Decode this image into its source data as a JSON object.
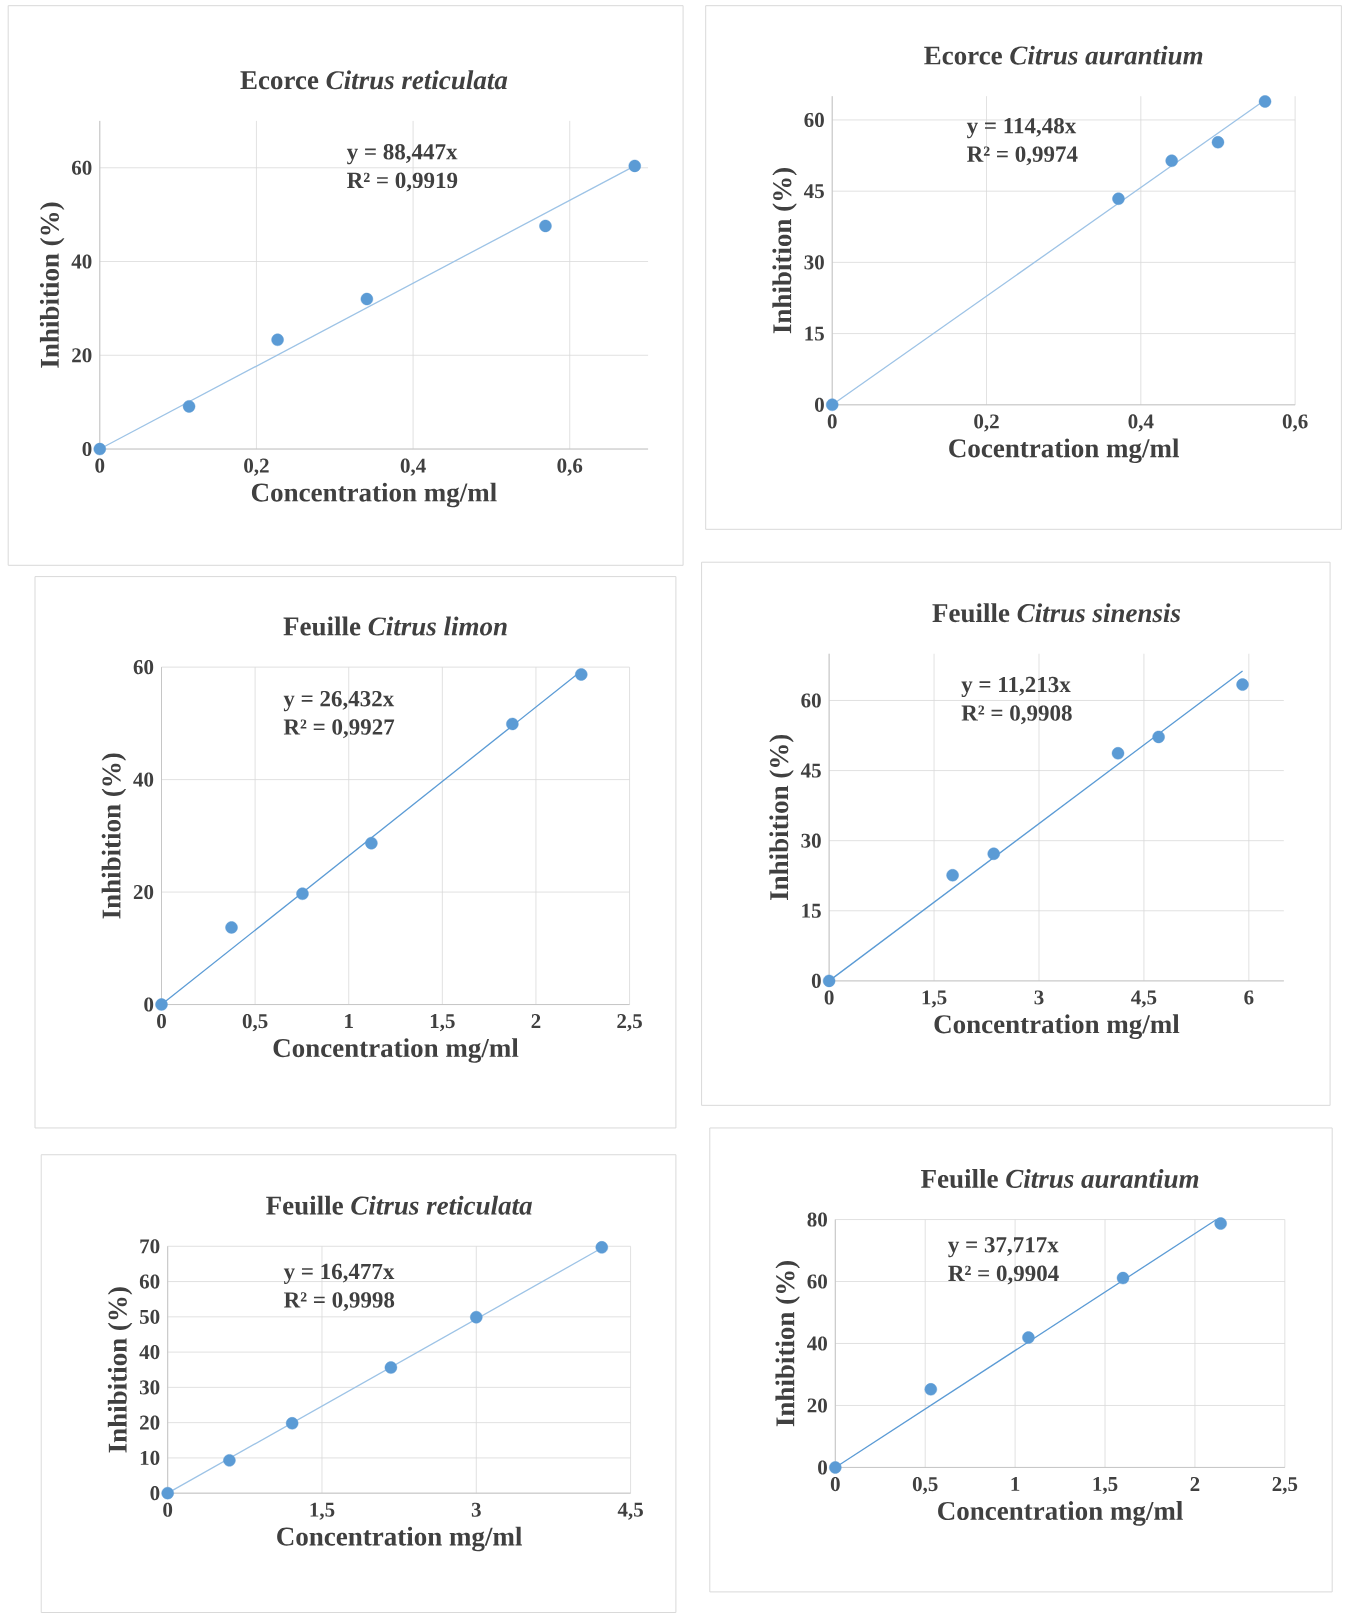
{
  "chart_data": [
    {
      "type": "scatter",
      "title": "Ecorce *Citrus reticulata*",
      "xlabel": "Concentration  mg/ml",
      "ylabel": "Inhibition (%)",
      "xlim": [
        0,
        0.7
      ],
      "ylim": [
        0,
        70
      ],
      "xticks": [
        0,
        {
          "value": 0.2,
          "label": "0,2"
        },
        {
          "value": 0.4,
          "label": "0,4"
        },
        {
          "value": 0.6,
          "label": "0,6"
        }
      ],
      "yticks": [
        0,
        20,
        40,
        60
      ],
      "grid": true,
      "annotations": [
        "y = 88,447x",
        "R² = 0,9919"
      ],
      "series": [
        {
          "type": "scatter",
          "marker": "circle",
          "color": "#5b9bd5",
          "x": [
            0,
            0.114,
            0.227,
            0.341,
            0.569,
            0.683
          ],
          "values": [
            0,
            9.1,
            23.3,
            32,
            47.6,
            60.4
          ]
        },
        {
          "type": "line",
          "marker": "none",
          "color": "#9dc3e6",
          "x": [
            0,
            0.683
          ],
          "values": [
            0,
            60.4
          ]
        }
      ]
    },
    {
      "type": "scatter",
      "title": "Ecorce *Citrus aurantium*",
      "xlabel": "Cocentration  mg/ml",
      "ylabel": "Inhibition (%)",
      "xlim": [
        0,
        0.6
      ],
      "ylim": [
        0,
        65
      ],
      "xticks": [
        0,
        {
          "value": 0.2,
          "label": "0,2"
        },
        {
          "value": 0.4,
          "label": "0,4"
        },
        {
          "value": 0.6,
          "label": "0,6"
        }
      ],
      "yticks": [
        0,
        15,
        30,
        45,
        60
      ],
      "grid": true,
      "annotations": [
        "y = 114,48x",
        "R² = 0,9974"
      ],
      "series": [
        {
          "type": "scatter",
          "marker": "circle",
          "color": "#5b9bd5",
          "x": [
            0,
            0.371,
            0.44,
            0.5,
            0.561
          ],
          "values": [
            0,
            43.4,
            51.4,
            55.3,
            63.9
          ]
        },
        {
          "type": "line",
          "marker": "none",
          "color": "#9dc3e6",
          "x": [
            0,
            0.561
          ],
          "values": [
            0,
            64.2
          ]
        }
      ]
    },
    {
      "type": "scatter",
      "title": "Feuille *Citrus limon*",
      "xlabel": "Concentration mg/ml",
      "ylabel": "Inhibition (%)",
      "xlim": [
        0,
        2.5
      ],
      "ylim": [
        0,
        60
      ],
      "xticks": [
        0,
        {
          "value": 0.5,
          "label": "0,5"
        },
        1,
        {
          "value": 1.5,
          "label": "1,5"
        },
        2,
        {
          "value": 2.5,
          "label": "2,5"
        }
      ],
      "yticks": [
        0,
        20,
        40,
        60
      ],
      "grid": true,
      "annotations": [
        "y = 26,432x",
        "R² = 0,9927"
      ],
      "series": [
        {
          "type": "scatter",
          "marker": "circle",
          "color": "#5b9bd5",
          "x": [
            0,
            0.374,
            0.753,
            1.121,
            1.874,
            2.242
          ],
          "values": [
            0,
            13.7,
            19.7,
            28.7,
            49.9,
            58.7
          ]
        },
        {
          "type": "line",
          "marker": "none",
          "color": "#5b9bd5",
          "x": [
            0,
            2.242
          ],
          "values": [
            0,
            59.3
          ]
        }
      ]
    },
    {
      "type": "scatter",
      "title": "Feuille  *Citrus sinensis*",
      "xlabel": "Concentration mg/ml",
      "ylabel": "Inhibition (%)",
      "xlim": [
        0,
        6.5
      ],
      "ylim": [
        0,
        70
      ],
      "xticks": [
        0,
        {
          "value": 1.5,
          "label": "1,5"
        },
        3,
        {
          "value": 4.5,
          "label": "4,5"
        },
        6
      ],
      "yticks": [
        0,
        15,
        30,
        45,
        60
      ],
      "grid": true,
      "annotations": [
        "y = 11,213x",
        "R² = 0,9908"
      ],
      "series": [
        {
          "type": "scatter",
          "marker": "circle",
          "color": "#5b9bd5",
          "x": [
            0,
            1.765,
            2.353,
            4.13,
            4.71,
            5.91
          ],
          "values": [
            0,
            22.6,
            27.2,
            48.7,
            52.2,
            63.4
          ]
        },
        {
          "type": "line",
          "marker": "none",
          "color": "#5b9bd5",
          "x": [
            0,
            5.91
          ],
          "values": [
            0,
            66.3
          ]
        }
      ]
    },
    {
      "type": "scatter",
      "title": "Feuille *Citrus reticulata*",
      "xlabel": "Concentration  mg/ml",
      "ylabel": "Inhibition (%)",
      "xlim": [
        0,
        4.5
      ],
      "ylim": [
        0,
        70
      ],
      "xticks": [
        0,
        {
          "value": 1.5,
          "label": "1,5"
        },
        3,
        {
          "value": 4.5,
          "label": "4,5"
        }
      ],
      "yticks": [
        0,
        10,
        20,
        30,
        40,
        50,
        60,
        70
      ],
      "grid": true,
      "annotations": [
        "y = 16,477x",
        "R² = 0,9998"
      ],
      "series": [
        {
          "type": "scatter",
          "marker": "circle",
          "color": "#5b9bd5",
          "x": [
            0,
            0.6,
            1.21,
            2.17,
            3.0,
            4.22
          ],
          "values": [
            0,
            9.3,
            19.8,
            35.6,
            49.9,
            69.7
          ]
        },
        {
          "type": "line",
          "marker": "none",
          "color": "#9dc3e6",
          "x": [
            0,
            4.22
          ],
          "values": [
            0,
            69.5
          ]
        }
      ]
    },
    {
      "type": "scatter",
      "title": "Feuille *Citrus aurantium*",
      "xlabel": "Concentration mg/ml",
      "ylabel": "Inhibition (%)",
      "xlim": [
        0,
        2.5
      ],
      "ylim": [
        0,
        80
      ],
      "xticks": [
        0,
        {
          "value": 0.5,
          "label": "0,5"
        },
        1,
        {
          "value": 1.5,
          "label": "1,5"
        },
        2,
        {
          "value": 2.5,
          "label": "2,5"
        }
      ],
      "yticks": [
        0,
        20,
        40,
        60,
        80
      ],
      "grid": true,
      "annotations": [
        "y = 37,717x",
        "R² = 0,9904"
      ],
      "series": [
        {
          "type": "scatter",
          "marker": "circle",
          "color": "#5b9bd5",
          "x": [
            0,
            0.531,
            1.074,
            1.6,
            2.143
          ],
          "values": [
            0,
            25.2,
            41.9,
            61.1,
            78.7
          ]
        },
        {
          "type": "line",
          "marker": "none",
          "color": "#5b9bd5",
          "x": [
            0,
            2.12
          ],
          "values": [
            0,
            80
          ]
        }
      ]
    }
  ]
}
